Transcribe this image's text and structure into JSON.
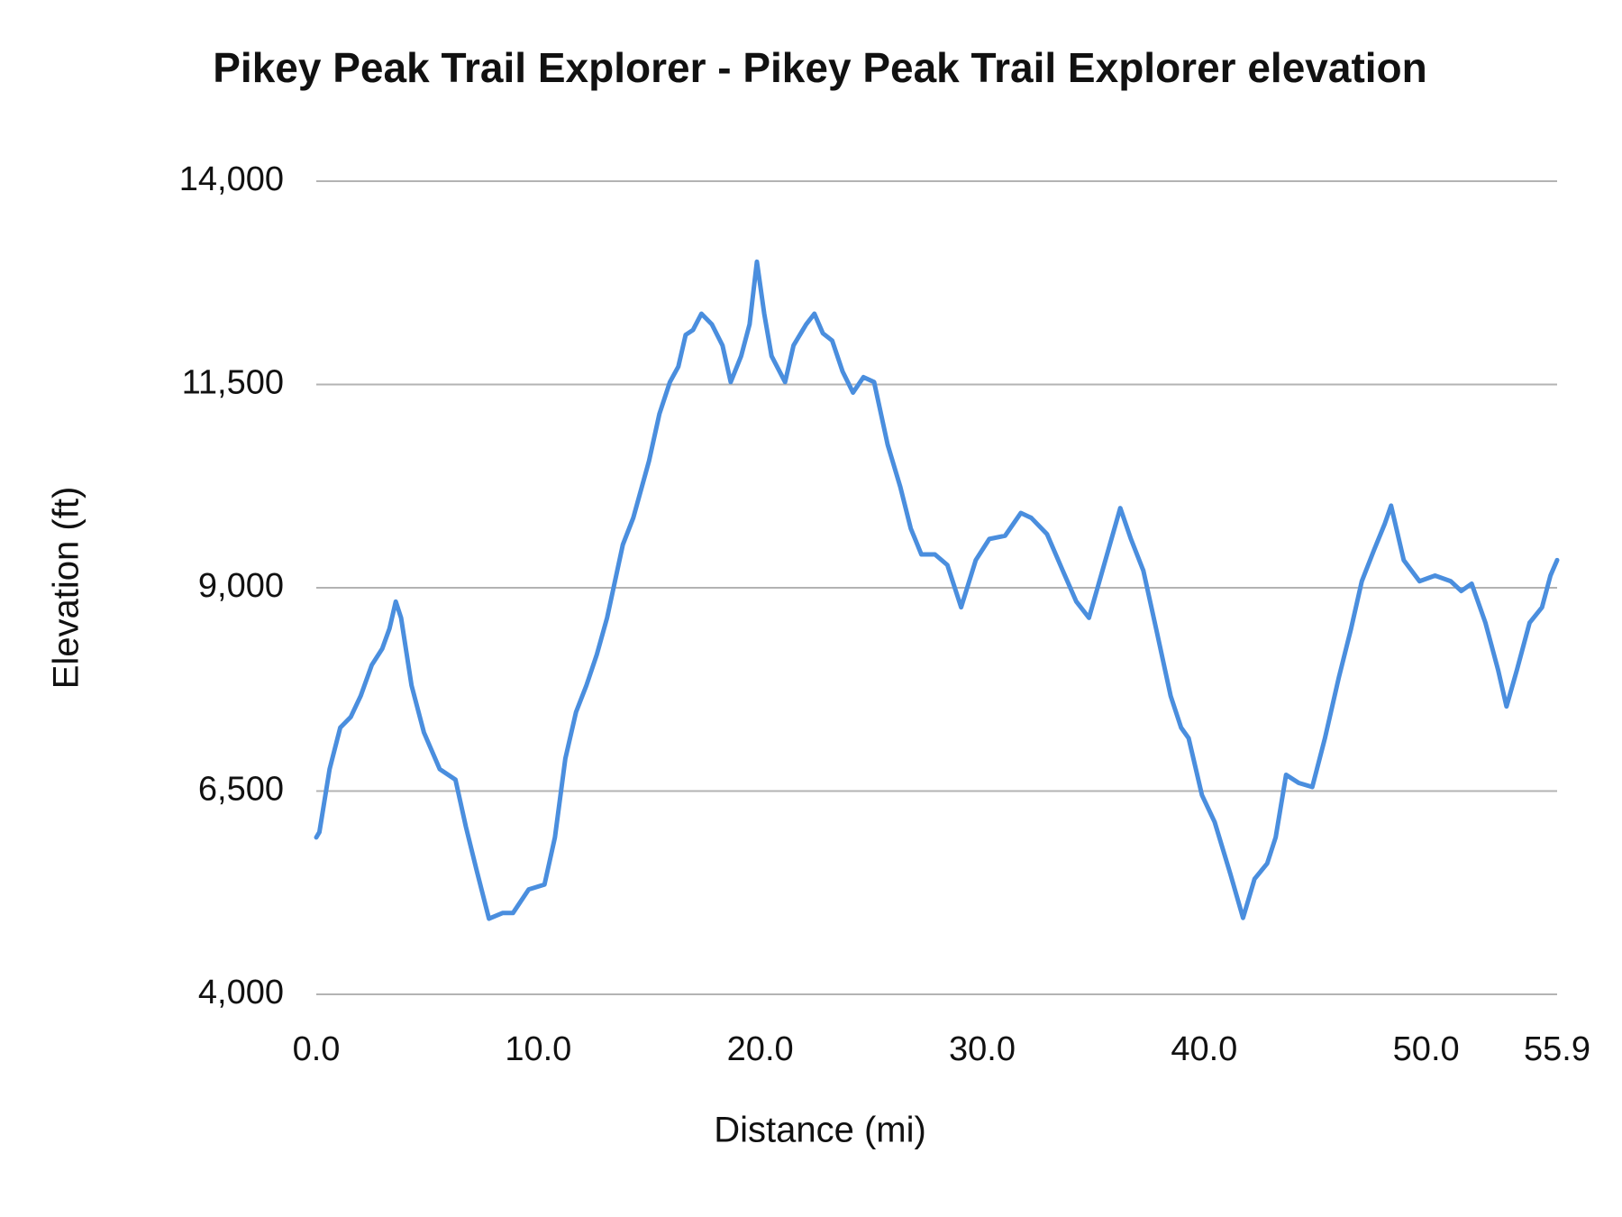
{
  "chart_data": {
    "type": "line",
    "title": "Pikey Peak Trail Explorer - Pikey Peak Trail Explorer elevation",
    "x_label": "Distance (mi)",
    "y_label": "Elevation (ft)",
    "xlim": [
      0,
      55.9
    ],
    "xticks": [
      {
        "value": 0,
        "label": "0.0"
      },
      {
        "value": 10,
        "label": "10.0"
      },
      {
        "value": 20,
        "label": "20.0"
      },
      {
        "value": 30,
        "label": "30.0"
      },
      {
        "value": 40,
        "label": "40.0"
      },
      {
        "value": 50,
        "label": "50.0"
      },
      {
        "value": 55.9,
        "label": "55.9"
      }
    ],
    "ylim": [
      4000,
      14000
    ],
    "yticks": [
      {
        "value": 4000,
        "label": "4,000"
      },
      {
        "value": 6500,
        "label": "6,500"
      },
      {
        "value": 9000,
        "label": "9,000"
      },
      {
        "value": 11500,
        "label": "11,500"
      },
      {
        "value": 14000,
        "label": "14,000"
      }
    ],
    "grid": true,
    "series": [
      {
        "name": "Elevation",
        "color": "#4a8ede",
        "x": [
          0,
          0.14,
          0.6,
          1.08,
          1.55,
          2.0,
          2.5,
          2.97,
          3.3,
          3.58,
          3.82,
          4.29,
          4.85,
          5.56,
          6.27,
          6.74,
          7.21,
          7.78,
          8.39,
          8.86,
          9.57,
          10.28,
          10.75,
          11.22,
          11.7,
          12.17,
          12.64,
          13.1,
          13.81,
          14.28,
          14.99,
          15.46,
          15.93,
          16.31,
          16.64,
          16.97,
          17.35,
          17.82,
          18.3,
          18.67,
          19.14,
          19.52,
          19.85,
          20.18,
          20.51,
          21.12,
          21.5,
          22.07,
          22.44,
          22.82,
          23.24,
          23.71,
          24.18,
          24.65,
          25.13,
          25.74,
          26.31,
          26.78,
          27.26,
          27.87,
          28.43,
          29.05,
          29.71,
          30.32,
          31.03,
          31.74,
          32.21,
          32.92,
          33.63,
          34.24,
          34.81,
          35.28,
          35.75,
          36.22,
          36.7,
          37.26,
          37.88,
          38.49,
          38.96,
          39.3,
          39.9,
          40.47,
          41.18,
          41.75,
          42.27,
          42.84,
          43.22,
          43.69,
          44.26,
          44.87,
          45.44,
          46.06,
          46.62,
          47.1,
          47.66,
          48.14,
          48.42,
          48.99,
          49.7,
          50.4,
          51.11,
          51.58,
          52.05,
          52.67,
          53.24,
          53.62,
          54.09,
          54.66,
          55.22,
          55.6,
          55.9
        ],
        "values": [
          5930,
          5995,
          6770,
          7280,
          7410,
          7670,
          8050,
          8250,
          8500,
          8830,
          8630,
          7800,
          7220,
          6770,
          6640,
          6060,
          5540,
          4930,
          5000,
          5000,
          5290,
          5350,
          5930,
          6900,
          7470,
          7800,
          8180,
          8630,
          9530,
          9860,
          10560,
          11140,
          11530,
          11720,
          12110,
          12170,
          12370,
          12240,
          11980,
          11530,
          11850,
          12240,
          13010,
          12370,
          11850,
          11530,
          11980,
          12240,
          12370,
          12130,
          12040,
          11660,
          11400,
          11590,
          11530,
          10760,
          10240,
          9730,
          9410,
          9410,
          9280,
          8760,
          9340,
          9600,
          9640,
          9920,
          9860,
          9660,
          9210,
          8830,
          8630,
          9080,
          9530,
          9980,
          9600,
          9210,
          8440,
          7670,
          7280,
          7150,
          6450,
          6120,
          5480,
          4940,
          5420,
          5610,
          5930,
          6700,
          6600,
          6550,
          7150,
          7890,
          8500,
          9080,
          9470,
          9790,
          10010,
          9340,
          9080,
          9150,
          9080,
          8960,
          9050,
          8570,
          7990,
          7540,
          7990,
          8570,
          8760,
          9150,
          9340
        ]
      }
    ]
  }
}
